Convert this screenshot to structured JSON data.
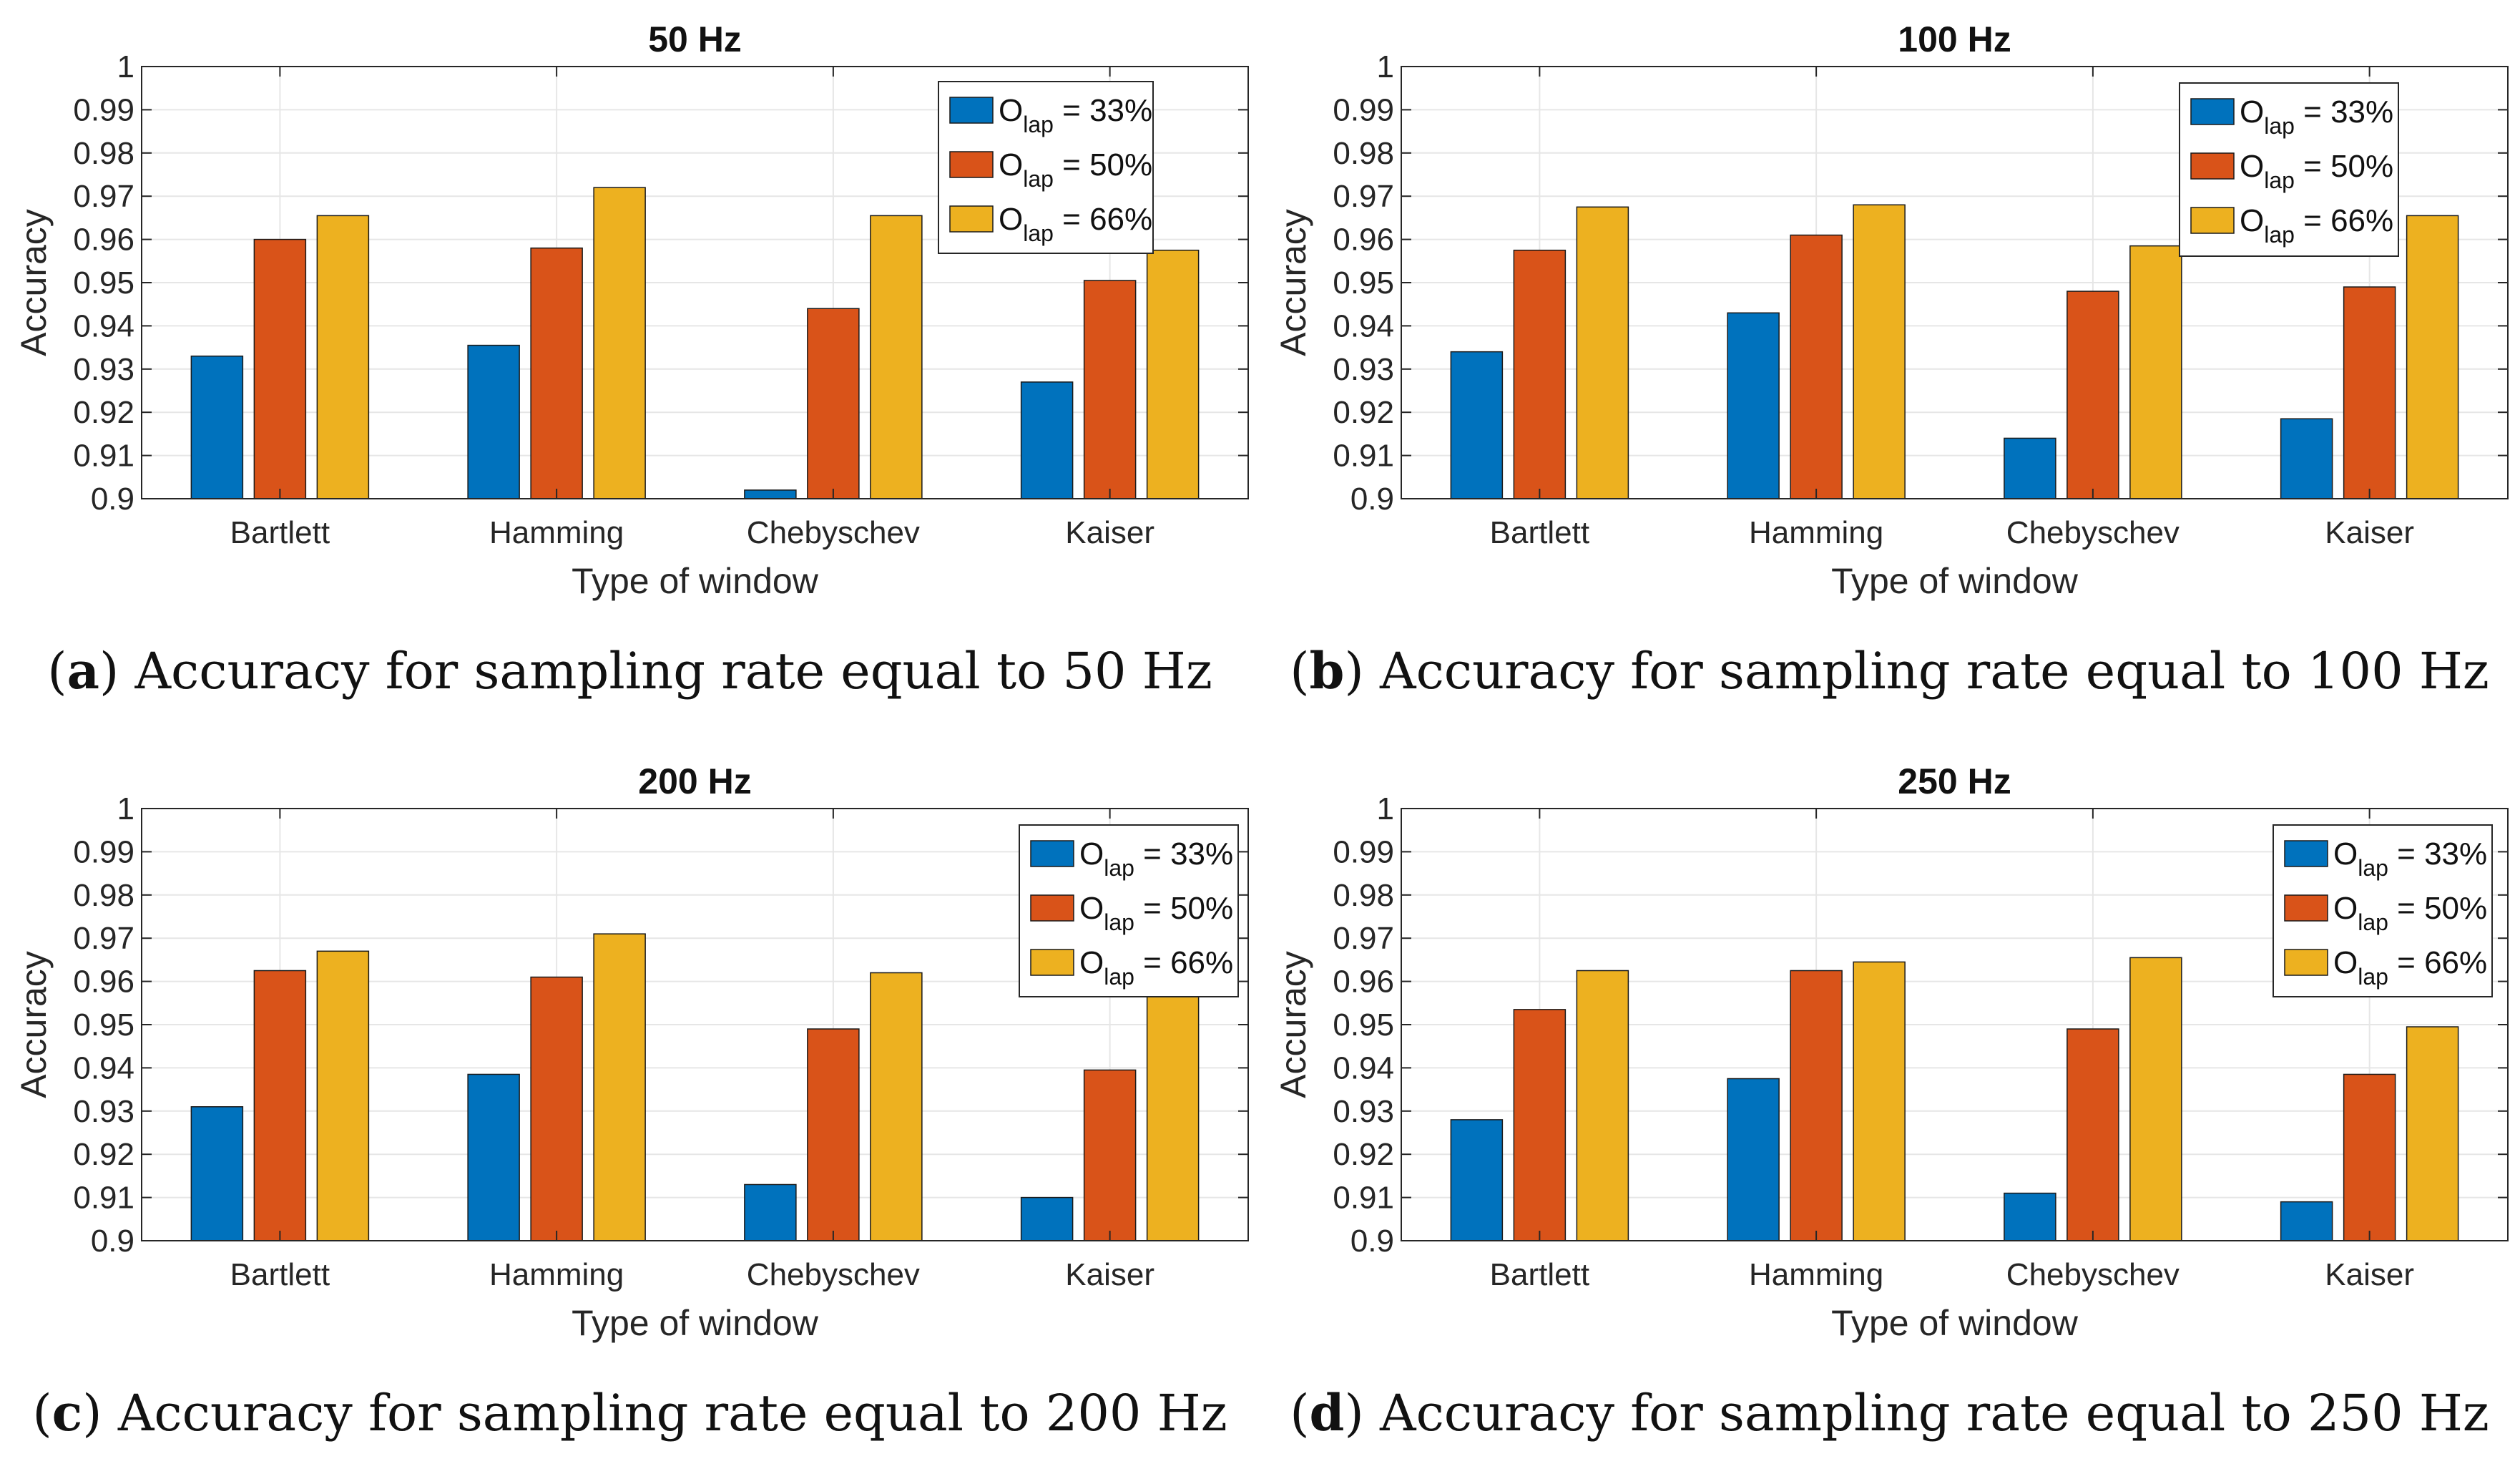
{
  "legend": {
    "prefix": "O",
    "subscript": "lap",
    "entries": [
      " = 33%",
      " = 50%",
      " = 66%"
    ]
  },
  "colors": [
    "#0072BD",
    "#D95319",
    "#EDB120"
  ],
  "chart_data": [
    {
      "type": "bar",
      "title": "50 Hz",
      "caption": {
        "label": "a",
        "text": " Accuracy for sampling rate equal to 50 Hz"
      },
      "xlabel": "Type of window",
      "ylabel": "Accuracy",
      "ylim": [
        0.9,
        1
      ],
      "yticks": [
        "0.9",
        "0.91",
        "0.92",
        "0.93",
        "0.94",
        "0.95",
        "0.96",
        "0.97",
        "0.98",
        "0.99",
        "1"
      ],
      "categories": [
        "Bartlett",
        "Hamming",
        "Chebyschev",
        "Kaiser"
      ],
      "legend_position": "top-right",
      "series": [
        {
          "name": "Olap = 33%",
          "values": [
            0.933,
            0.9355,
            0.902,
            0.927
          ]
        },
        {
          "name": "Olap = 50%",
          "values": [
            0.96,
            0.958,
            0.944,
            0.9505
          ]
        },
        {
          "name": "Olap = 66%",
          "values": [
            0.9655,
            0.972,
            0.9655,
            0.9575
          ]
        }
      ]
    },
    {
      "type": "bar",
      "title": "100 Hz",
      "caption": {
        "label": "b",
        "text": " Accuracy for sampling rate equal to 100 Hz"
      },
      "xlabel": "Type of window",
      "ylabel": "Accuracy",
      "ylim": [
        0.9,
        1
      ],
      "yticks": [
        "0.9",
        "0.91",
        "0.92",
        "0.93",
        "0.94",
        "0.95",
        "0.96",
        "0.97",
        "0.98",
        "0.99",
        "1"
      ],
      "categories": [
        "Bartlett",
        "Hamming",
        "Chebyschev",
        "Kaiser"
      ],
      "legend_position": "top-right",
      "series": [
        {
          "name": "Olap = 33%",
          "values": [
            0.934,
            0.943,
            0.914,
            0.9185
          ]
        },
        {
          "name": "Olap = 50%",
          "values": [
            0.9575,
            0.961,
            0.948,
            0.949
          ]
        },
        {
          "name": "Olap = 66%",
          "values": [
            0.9675,
            0.968,
            0.9585,
            0.9655
          ]
        }
      ]
    },
    {
      "type": "bar",
      "title": "200 Hz",
      "caption": {
        "label": "c",
        "text": " Accuracy for sampling rate equal to 200 Hz"
      },
      "xlabel": "Type of window",
      "ylabel": "Accuracy",
      "ylim": [
        0.9,
        1
      ],
      "yticks": [
        "0.9",
        "0.91",
        "0.92",
        "0.93",
        "0.94",
        "0.95",
        "0.96",
        "0.97",
        "0.98",
        "0.99",
        "1"
      ],
      "categories": [
        "Bartlett",
        "Hamming",
        "Chebyschev",
        "Kaiser"
      ],
      "legend_position": "top-right",
      "series": [
        {
          "name": "Olap = 33%",
          "values": [
            0.931,
            0.9385,
            0.913,
            0.91
          ]
        },
        {
          "name": "Olap = 50%",
          "values": [
            0.9625,
            0.961,
            0.949,
            0.9395
          ]
        },
        {
          "name": "Olap = 66%",
          "values": [
            0.967,
            0.971,
            0.962,
            0.9575
          ]
        }
      ]
    },
    {
      "type": "bar",
      "title": "250 Hz",
      "caption": {
        "label": "d",
        "text": " Accuracy for sampling rate equal to 250 Hz"
      },
      "xlabel": "Type of window",
      "ylabel": "Accuracy",
      "ylim": [
        0.9,
        1
      ],
      "yticks": [
        "0.9",
        "0.91",
        "0.92",
        "0.93",
        "0.94",
        "0.95",
        "0.96",
        "0.97",
        "0.98",
        "0.99",
        "1"
      ],
      "categories": [
        "Bartlett",
        "Hamming",
        "Chebyschev",
        "Kaiser"
      ],
      "legend_position": "top-right",
      "series": [
        {
          "name": "Olap = 33%",
          "values": [
            0.928,
            0.9375,
            0.911,
            0.909
          ]
        },
        {
          "name": "Olap = 50%",
          "values": [
            0.9535,
            0.9625,
            0.949,
            0.9385
          ]
        },
        {
          "name": "Olap = 66%",
          "values": [
            0.9625,
            0.9645,
            0.9655,
            0.9495
          ]
        }
      ]
    }
  ]
}
